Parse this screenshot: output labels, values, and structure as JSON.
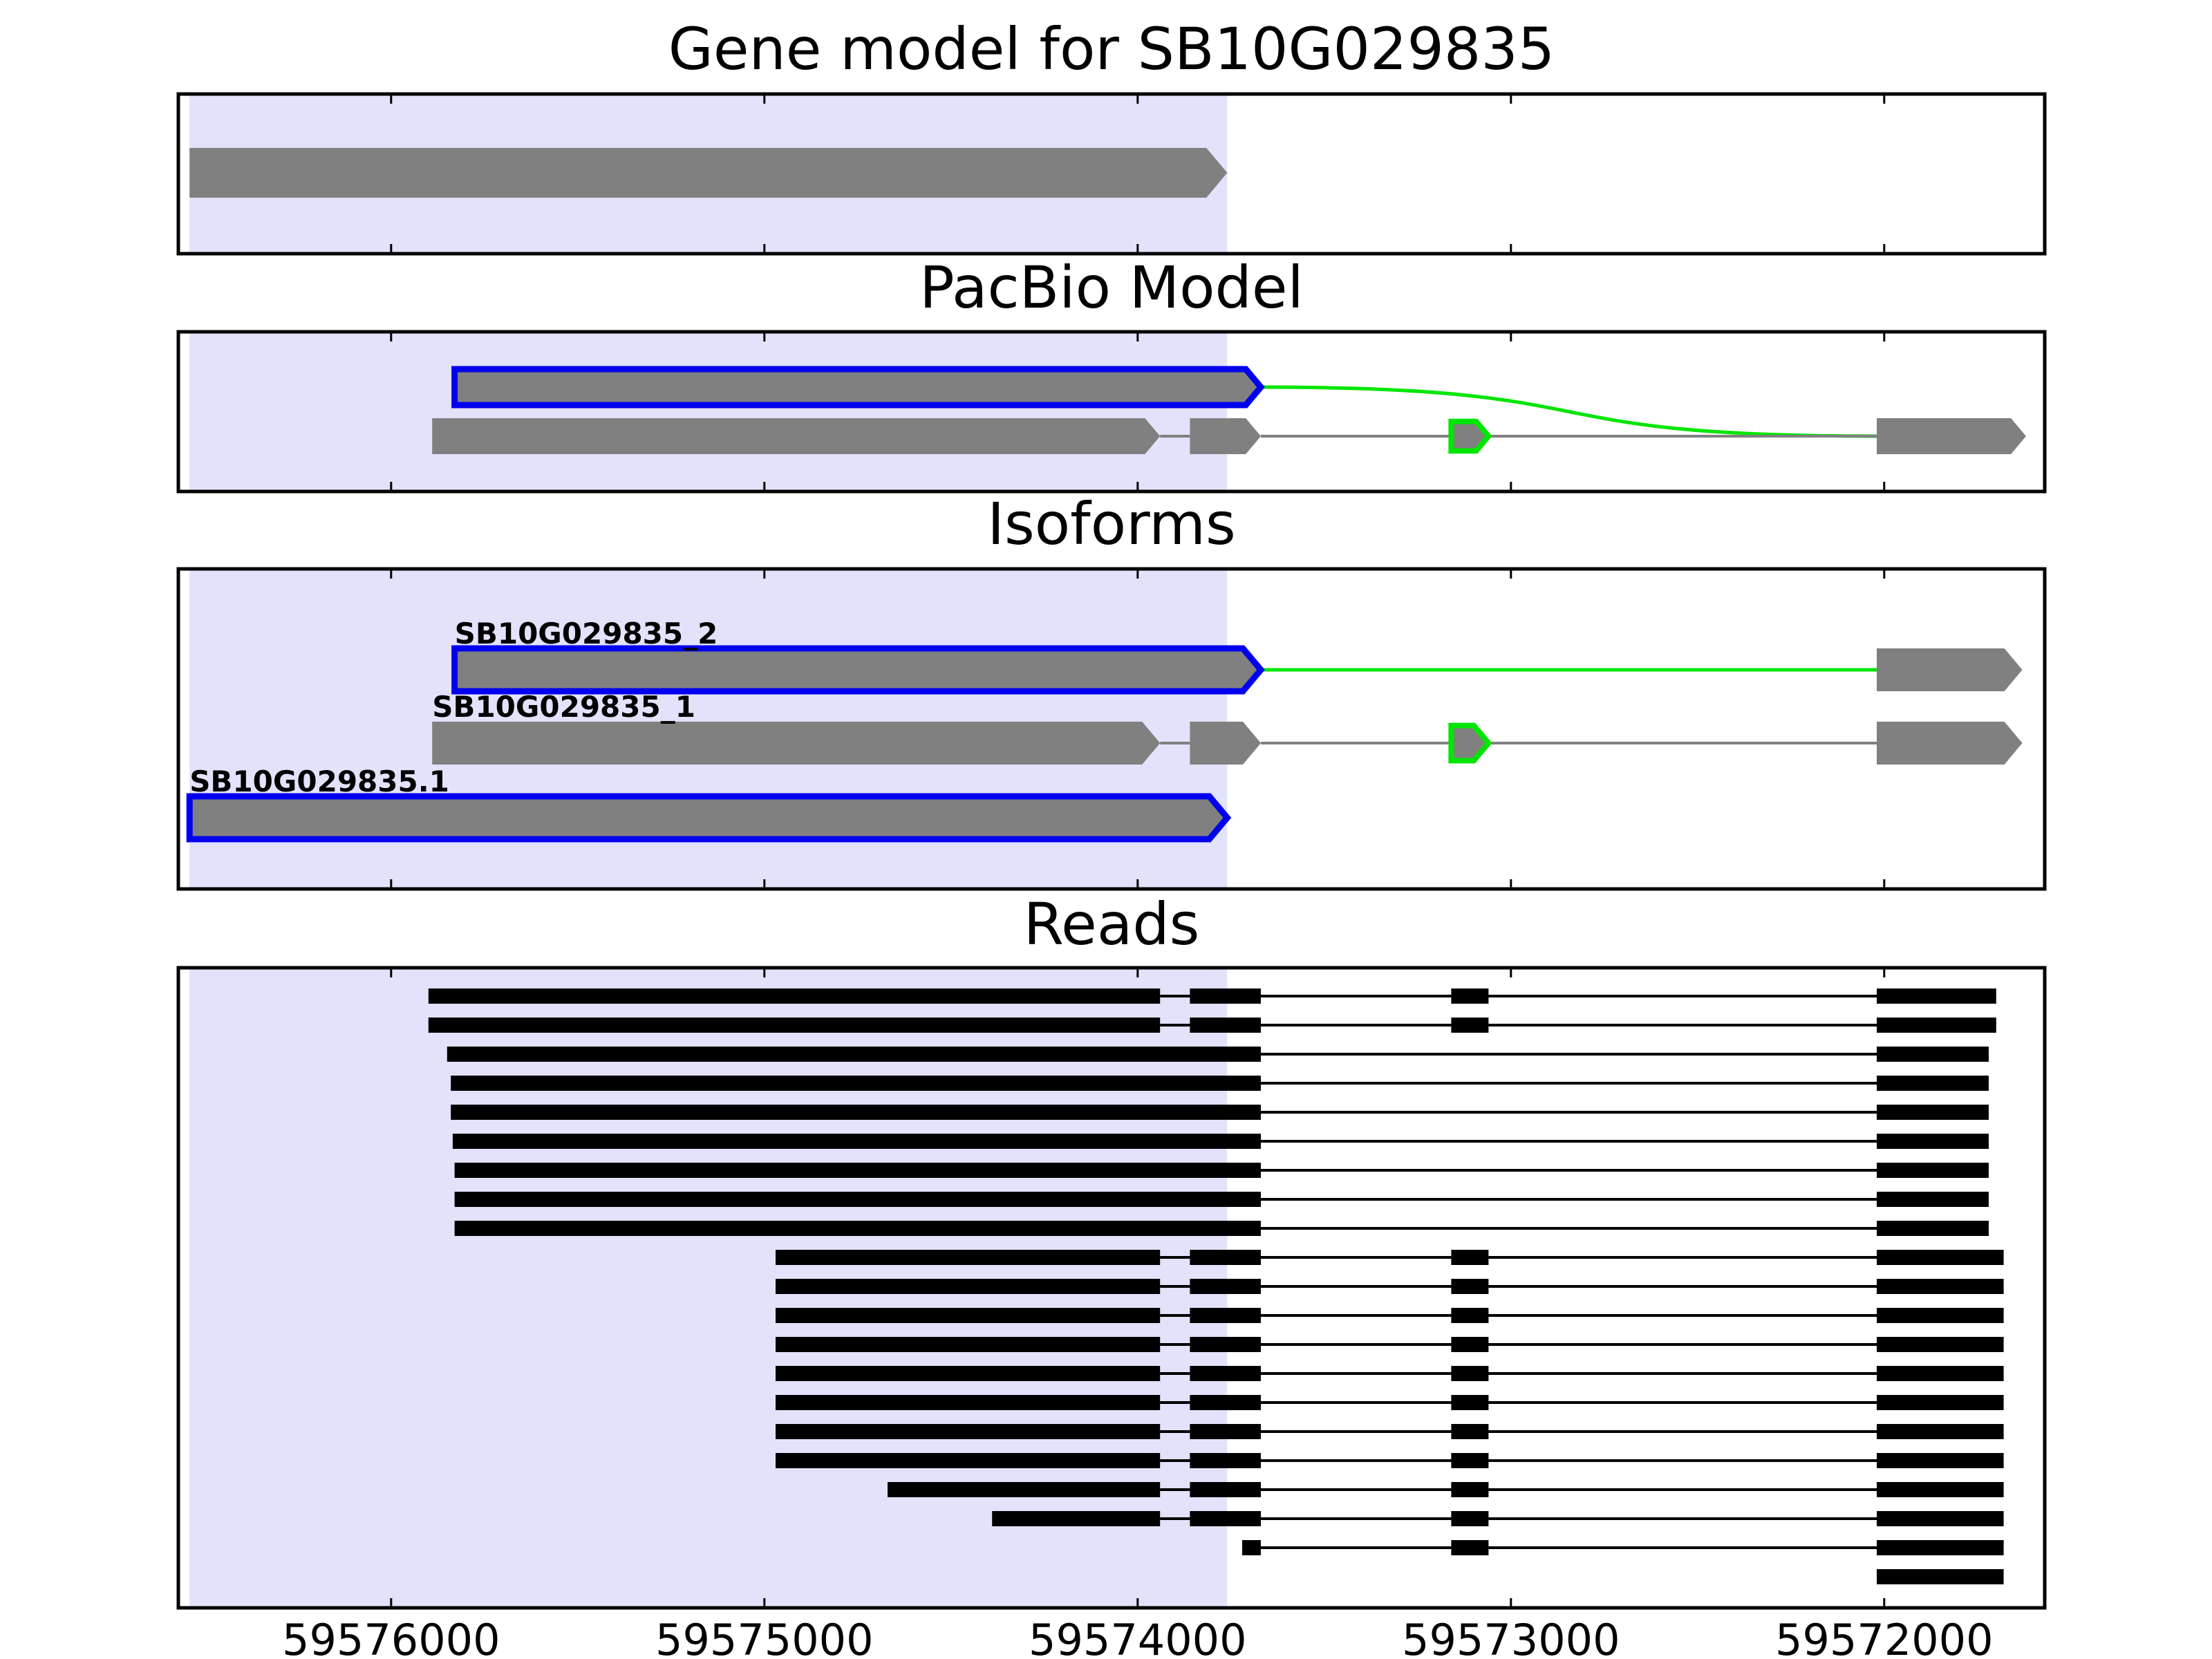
{
  "chart_data": {
    "type": "gene-model",
    "x_axis": {
      "reversed": true,
      "xlim": [
        59576570,
        59571570
      ],
      "ticks": [
        59576000,
        59575000,
        59574000,
        59573000,
        59572000
      ],
      "tick_labels": [
        "59576000",
        "59575000",
        "59574000",
        "59573000",
        "59572000"
      ]
    },
    "highlight_region": {
      "start": 59576540,
      "end": 59573760,
      "color": "#e2e2fb"
    },
    "colors": {
      "exon": "#808080",
      "highlight_border": "#0000ee",
      "novel": "#00e600",
      "read": "#000000",
      "intron": "#808080"
    },
    "panels": [
      {
        "id": "gene-model",
        "title": "Gene model for SB10G029835",
        "tracks": [
          {
            "label": "",
            "strand": "-",
            "highlight": false,
            "exons": [
              [
                59576540,
                59573760
              ]
            ],
            "novel_exons": [],
            "novel_junctions": []
          }
        ]
      },
      {
        "id": "pacbio-model",
        "title": "PacBio Model",
        "tracks": [
          {
            "label": "",
            "strand": "-",
            "highlight": true,
            "exons": [
              [
                59575830,
                59573670
              ]
            ],
            "novel_exons": [],
            "novel_junctions": [
              [
                59573670,
                59572020
              ]
            ]
          },
          {
            "label": "",
            "strand": "-",
            "highlight": false,
            "exons": [
              [
                59575890,
                59573940
              ],
              [
                59573860,
                59573670
              ],
              [
                59572020,
                59571620
              ]
            ],
            "novel_exons": [
              [
                59573160,
                59573060
              ]
            ],
            "novel_junctions": []
          }
        ]
      },
      {
        "id": "isoforms",
        "title": "Isoforms",
        "tracks": [
          {
            "label": "SB10G029835_2",
            "strand": "-",
            "highlight": true,
            "exons": [
              [
                59575830,
                59573670
              ],
              [
                59572020,
                59571630
              ]
            ],
            "novel_exons": [],
            "novel_junctions": [
              [
                59573670,
                59572020
              ]
            ]
          },
          {
            "label": "SB10G029835_1",
            "strand": "-",
            "highlight": false,
            "exons": [
              [
                59575890,
                59573940
              ],
              [
                59573860,
                59573670
              ],
              [
                59572020,
                59571630
              ]
            ],
            "novel_exons": [
              [
                59573160,
                59573060
              ]
            ],
            "novel_junctions": []
          },
          {
            "label": "SB10G029835.1",
            "strand": "-",
            "highlight": true,
            "exons": [
              [
                59576540,
                59573760
              ]
            ],
            "novel_exons": [],
            "novel_junctions": []
          }
        ]
      },
      {
        "id": "reads",
        "title": "Reads",
        "reads": [
          [
            [
              59575900,
              59573940
            ],
            [
              59573860,
              59573670
            ],
            [
              59573160,
              59573060
            ],
            [
              59572020,
              59571700
            ]
          ],
          [
            [
              59575900,
              59573940
            ],
            [
              59573860,
              59573670
            ],
            [
              59573160,
              59573060
            ],
            [
              59572020,
              59571700
            ]
          ],
          [
            [
              59575850,
              59573670
            ],
            [
              59572020,
              59571720
            ]
          ],
          [
            [
              59575840,
              59573670
            ],
            [
              59572020,
              59571720
            ]
          ],
          [
            [
              59575840,
              59573670
            ],
            [
              59572020,
              59571720
            ]
          ],
          [
            [
              59575835,
              59573670
            ],
            [
              59572020,
              59571720
            ]
          ],
          [
            [
              59575830,
              59573670
            ],
            [
              59572020,
              59571720
            ]
          ],
          [
            [
              59575830,
              59573670
            ],
            [
              59572020,
              59571720
            ]
          ],
          [
            [
              59575830,
              59573670
            ],
            [
              59572020,
              59571720
            ]
          ],
          [
            [
              59574970,
              59573940
            ],
            [
              59573860,
              59573670
            ],
            [
              59573160,
              59573060
            ],
            [
              59572020,
              59571680
            ]
          ],
          [
            [
              59574970,
              59573940
            ],
            [
              59573860,
              59573670
            ],
            [
              59573160,
              59573060
            ],
            [
              59572020,
              59571680
            ]
          ],
          [
            [
              59574970,
              59573940
            ],
            [
              59573860,
              59573670
            ],
            [
              59573160,
              59573060
            ],
            [
              59572020,
              59571680
            ]
          ],
          [
            [
              59574970,
              59573940
            ],
            [
              59573860,
              59573670
            ],
            [
              59573160,
              59573060
            ],
            [
              59572020,
              59571680
            ]
          ],
          [
            [
              59574970,
              59573940
            ],
            [
              59573860,
              59573670
            ],
            [
              59573160,
              59573060
            ],
            [
              59572020,
              59571680
            ]
          ],
          [
            [
              59574970,
              59573940
            ],
            [
              59573860,
              59573670
            ],
            [
              59573160,
              59573060
            ],
            [
              59572020,
              59571680
            ]
          ],
          [
            [
              59574970,
              59573940
            ],
            [
              59573860,
              59573670
            ],
            [
              59573160,
              59573060
            ],
            [
              59572020,
              59571680
            ]
          ],
          [
            [
              59574970,
              59573940
            ],
            [
              59573860,
              59573670
            ],
            [
              59573160,
              59573060
            ],
            [
              59572020,
              59571680
            ]
          ],
          [
            [
              59574670,
              59573940
            ],
            [
              59573860,
              59573670
            ],
            [
              59573160,
              59573060
            ],
            [
              59572020,
              59571680
            ]
          ],
          [
            [
              59574390,
              59573940
            ],
            [
              59573860,
              59573670
            ],
            [
              59573160,
              59573060
            ],
            [
              59572020,
              59571680
            ]
          ],
          [
            [
              59573720,
              59573670
            ],
            [
              59573160,
              59573060
            ],
            [
              59572020,
              59571680
            ]
          ],
          [
            [
              59572020,
              59571680
            ]
          ]
        ]
      }
    ]
  }
}
